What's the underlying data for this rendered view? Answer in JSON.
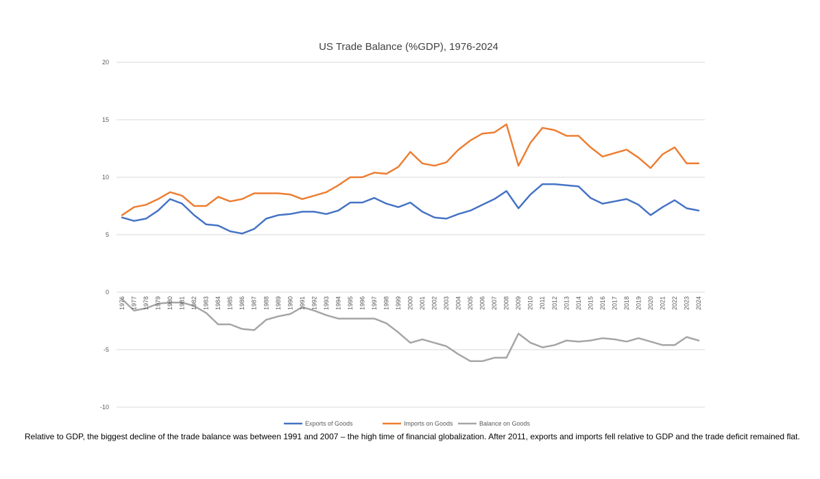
{
  "caption": "Relative to GDP, the biggest decline of the trade balance was between 1991 and 2007 – the high time of financial globalization. After 2011, exports and imports fell relative to GDP and the trade deficit remained flat.",
  "chart_data": {
    "type": "line",
    "title": "US Trade Balance (%GDP), 1976-2024",
    "xlabel": "",
    "ylabel": "",
    "ylim": [
      -10,
      20
    ],
    "yticks": [
      -10,
      -5,
      0,
      5,
      10,
      15,
      20
    ],
    "grid": "horizontal",
    "legend_position": "bottom",
    "x": [
      "1976",
      "1977",
      "1978",
      "1979",
      "1980",
      "1981",
      "1982",
      "1983",
      "1984",
      "1985",
      "1986",
      "1987",
      "1988",
      "1989",
      "1990",
      "1991",
      "1992",
      "1993",
      "1994",
      "1995",
      "1996",
      "1997",
      "1998",
      "1999",
      "2000",
      "2001",
      "2002",
      "2003",
      "2004",
      "2005",
      "2006",
      "2007",
      "2008",
      "2009",
      "2010",
      "2011",
      "2012",
      "2013",
      "2014",
      "2015",
      "2016",
      "2017",
      "2018",
      "2019",
      "2020",
      "2021",
      "2022",
      "2023",
      "2024"
    ],
    "series": [
      {
        "name": "Exports of Goods",
        "color": "#4472C4",
        "values": [
          6.5,
          6.2,
          6.4,
          7.1,
          8.1,
          7.7,
          6.7,
          5.9,
          5.8,
          5.3,
          5.1,
          5.5,
          6.4,
          6.7,
          6.8,
          7.0,
          7.0,
          6.8,
          7.1,
          7.8,
          7.8,
          8.2,
          7.7,
          7.4,
          7.8,
          7.0,
          6.5,
          6.4,
          6.8,
          7.1,
          7.6,
          8.1,
          8.8,
          7.3,
          8.5,
          9.4,
          9.4,
          9.3,
          9.2,
          8.2,
          7.7,
          7.9,
          8.1,
          7.6,
          6.7,
          7.4,
          8.0,
          7.3,
          7.1
        ]
      },
      {
        "name": "Imports on Goods",
        "color": "#ED7D31",
        "values": [
          6.7,
          7.4,
          7.6,
          8.1,
          8.7,
          8.4,
          7.5,
          7.5,
          8.3,
          7.9,
          8.1,
          8.6,
          8.6,
          8.6,
          8.5,
          8.1,
          8.4,
          8.7,
          9.3,
          10.0,
          10.0,
          10.4,
          10.3,
          10.9,
          12.2,
          11.2,
          11.0,
          11.3,
          12.4,
          13.2,
          13.8,
          13.9,
          14.6,
          11.0,
          13.0,
          14.3,
          14.1,
          13.6,
          13.6,
          12.6,
          11.8,
          12.1,
          12.4,
          11.7,
          10.8,
          12.0,
          12.6,
          11.2,
          11.2
        ]
      },
      {
        "name": "Balance on Goods",
        "color": "#A5A5A5",
        "values": [
          -0.6,
          -1.6,
          -1.4,
          -1.0,
          -0.9,
          -0.9,
          -1.2,
          -1.8,
          -2.8,
          -2.8,
          -3.2,
          -3.3,
          -2.4,
          -2.1,
          -1.9,
          -1.3,
          -1.6,
          -2.0,
          -2.3,
          -2.3,
          -2.3,
          -2.3,
          -2.7,
          -3.5,
          -4.4,
          -4.1,
          -4.4,
          -4.7,
          -5.4,
          -6.0,
          -6.0,
          -5.7,
          -5.7,
          -3.6,
          -4.4,
          -4.8,
          -4.6,
          -4.2,
          -4.3,
          -4.2,
          -4.0,
          -4.1,
          -4.3,
          -4.0,
          -4.3,
          -4.6,
          -4.6,
          -3.9,
          -4.2
        ]
      }
    ]
  }
}
